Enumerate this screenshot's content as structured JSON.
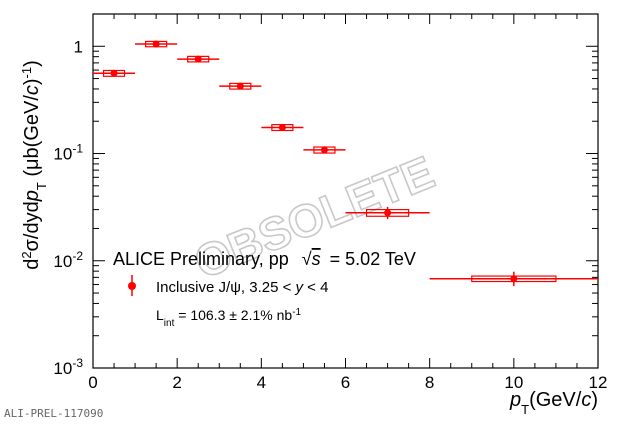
{
  "chart_data": {
    "type": "scatter",
    "title": "",
    "xlabel": "p_T (GeV/c)",
    "ylabel": "d²σ/dydp_T (μb(GeV/c)⁻¹)",
    "xlim": [
      0,
      12
    ],
    "ylim": [
      0.001,
      2
    ],
    "ylog": true,
    "grid": false,
    "legend_placement": "lower-left",
    "x_ticks": [
      "0",
      "2",
      "4",
      "6",
      "8",
      "10",
      "12"
    ],
    "y_ticks": [
      {
        "base": "10",
        "exp": "-3",
        "value": 0.001
      },
      {
        "base": "10",
        "exp": "-2",
        "value": 0.01
      },
      {
        "base": "10",
        "exp": "-1",
        "value": 0.1
      },
      {
        "base": "1",
        "exp": "",
        "value": 1
      }
    ],
    "annotation": {
      "experiment": "ALICE Preliminary, pp",
      "energy_sqrt": "√",
      "energy_s": "s",
      "energy_value": "= 5.02 TeV",
      "series_label_pre": "Inclusive J/ψ, 3.25 < ",
      "series_label_var": "y",
      "series_label_post": " < 4",
      "lumi_main": "L",
      "lumi_sub": "int",
      "lumi_value": " = 106.3 ± 2.1% nb",
      "lumi_exp": "-1"
    },
    "watermark": "OBSOLETE",
    "footer_id": "ALI-PREL-117090",
    "series": [
      {
        "name": "Inclusive J/ψ, 3.25 < y < 4",
        "color": "#ff0000",
        "points": [
          {
            "x": 0.5,
            "xlo": 0,
            "xhi": 1,
            "y": 0.56,
            "ylo": 0.53,
            "yhi": 0.59,
            "sys": 0.035
          },
          {
            "x": 1.5,
            "xlo": 1,
            "xhi": 2,
            "y": 1.05,
            "ylo": 1.0,
            "yhi": 1.1,
            "sys": 0.06
          },
          {
            "x": 2.5,
            "xlo": 2,
            "xhi": 3,
            "y": 0.76,
            "ylo": 0.72,
            "yhi": 0.8,
            "sys": 0.045
          },
          {
            "x": 3.5,
            "xlo": 3,
            "xhi": 4,
            "y": 0.425,
            "ylo": 0.405,
            "yhi": 0.445,
            "sys": 0.026
          },
          {
            "x": 4.5,
            "xlo": 4,
            "xhi": 5,
            "y": 0.175,
            "ylo": 0.163,
            "yhi": 0.187,
            "sys": 0.011
          },
          {
            "x": 5.5,
            "xlo": 5,
            "xhi": 6,
            "y": 0.108,
            "ylo": 0.1,
            "yhi": 0.116,
            "sys": 0.007
          },
          {
            "x": 7.0,
            "xlo": 6,
            "xhi": 8,
            "y": 0.028,
            "ylo": 0.0245,
            "yhi": 0.0318,
            "sys": 0.002
          },
          {
            "x": 10.0,
            "xlo": 8,
            "xhi": 12,
            "y": 0.0068,
            "ylo": 0.0058,
            "yhi": 0.0079,
            "sys": 0.0004
          }
        ]
      }
    ]
  }
}
